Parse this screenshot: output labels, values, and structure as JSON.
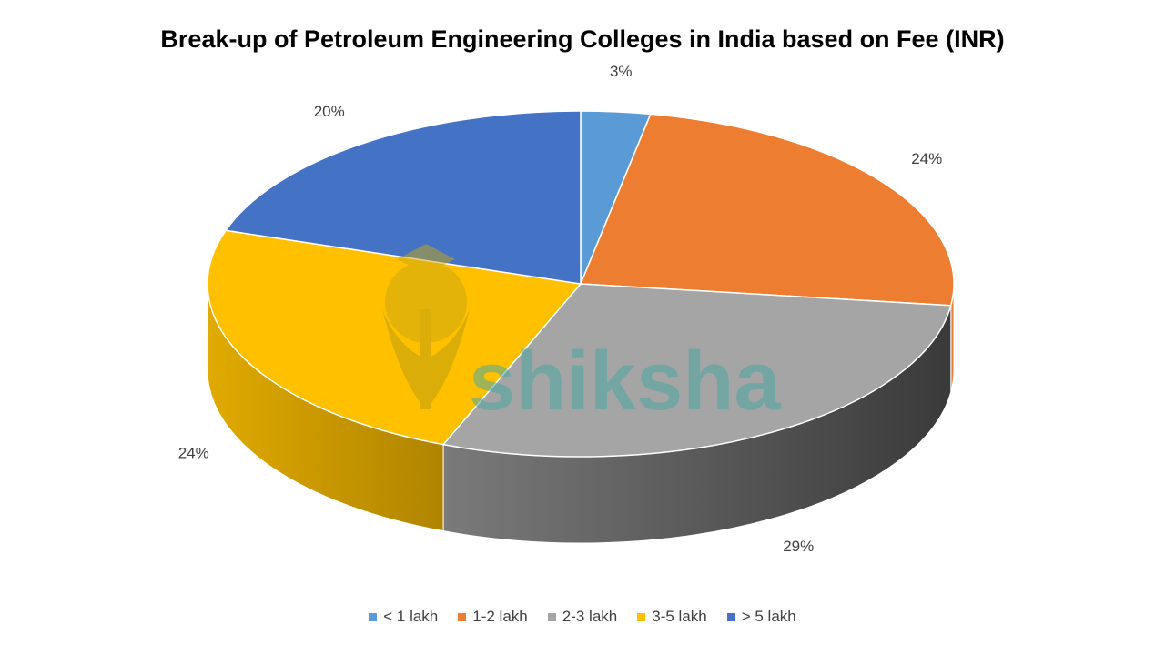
{
  "chart_data": {
    "type": "pie",
    "title": "Break-up of Petroleum Engineering Colleges in India based on Fee (INR)",
    "categories": [
      "< 1 lakh",
      "1-2 lakh",
      "2-3 lakh",
      "3-5 lakh",
      "> 5 lakh"
    ],
    "values": [
      3,
      24,
      29,
      24,
      20
    ],
    "data_labels": [
      "3%",
      "24%",
      "29%",
      "24%",
      "20%"
    ],
    "colors": [
      "#5b9bd5",
      "#ed7d31",
      "#a5a5a5",
      "#ffc000",
      "#4472c4"
    ],
    "legend_position": "bottom",
    "style": "3d"
  },
  "watermark": {
    "text": "shiksha",
    "icon": "graduation-cap-logo-icon"
  }
}
